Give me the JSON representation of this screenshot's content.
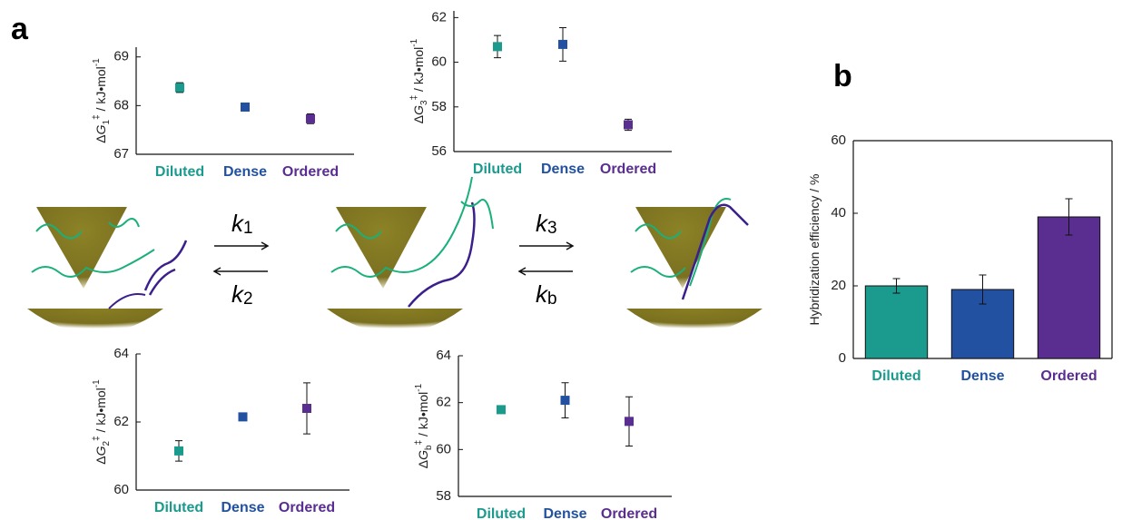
{
  "panel_labels": [
    "a",
    "b"
  ],
  "rate_constants": [
    {
      "symbol": "k",
      "subscript": "1"
    },
    {
      "symbol": "k",
      "subscript": "2"
    },
    {
      "symbol": "k",
      "subscript": "3"
    },
    {
      "symbol": "k",
      "subscript": "b"
    }
  ],
  "chart_data": [
    {
      "type": "errorbar",
      "categories": [
        "Diluted",
        "Dense",
        "Ordered"
      ],
      "colors": [
        "#1b9a8e",
        "#2151a0",
        "#5a2d90"
      ],
      "values": [
        68.37,
        67.97,
        67.73
      ],
      "errors": [
        0.1,
        0.03,
        0.1
      ],
      "ylabel": [
        {
          "text": "Δ"
        },
        {
          "text": "G",
          "style": "italic"
        },
        {
          "text": "1",
          "style": "sub"
        },
        {
          "text": "‡",
          "style": "sup"
        },
        {
          "text": " / kJ•mol"
        },
        {
          "text": "-1",
          "style": "sup"
        }
      ],
      "ylim": [
        67,
        69.2
      ],
      "yticks": [
        67,
        68,
        69
      ],
      "frame": false
    },
    {
      "type": "errorbar",
      "categories": [
        "Diluted",
        "Dense",
        "Ordered"
      ],
      "colors": [
        "#1b9a8e",
        "#2151a0",
        "#5a2d90"
      ],
      "values": [
        60.7,
        60.8,
        57.2
      ],
      "errors": [
        0.5,
        0.75,
        0.25
      ],
      "ylabel": [
        {
          "text": "Δ"
        },
        {
          "text": "G",
          "style": "italic"
        },
        {
          "text": "3",
          "style": "sub"
        },
        {
          "text": "‡",
          "style": "sup"
        },
        {
          "text": " / kJ•mol"
        },
        {
          "text": "-1",
          "style": "sup"
        }
      ],
      "ylim": [
        56,
        62.3
      ],
      "yticks": [
        56,
        58,
        60,
        62
      ],
      "frame": false
    },
    {
      "type": "errorbar",
      "categories": [
        "Diluted",
        "Dense",
        "Ordered"
      ],
      "colors": [
        "#1b9a8e",
        "#2151a0",
        "#5a2d90"
      ],
      "values": [
        61.15,
        62.15,
        62.4
      ],
      "errors": [
        0.3,
        0.05,
        0.75
      ],
      "ylabel": [
        {
          "text": "Δ"
        },
        {
          "text": "G",
          "style": "italic"
        },
        {
          "text": "2",
          "style": "sub"
        },
        {
          "text": "‡",
          "style": "sup"
        },
        {
          "text": " / kJ•mol"
        },
        {
          "text": "-1",
          "style": "sup"
        }
      ],
      "ylim": [
        60,
        64
      ],
      "yticks": [
        60,
        62,
        64
      ],
      "frame": false
    },
    {
      "type": "errorbar",
      "categories": [
        "Diluted",
        "Dense",
        "Ordered"
      ],
      "colors": [
        "#1b9a8e",
        "#2151a0",
        "#5a2d90"
      ],
      "values": [
        61.7,
        62.1,
        61.2
      ],
      "errors": [
        0.1,
        0.75,
        1.05
      ],
      "ylabel": [
        {
          "text": "Δ"
        },
        {
          "text": "G",
          "style": "italic"
        },
        {
          "text": "b",
          "style": "sub"
        },
        {
          "text": "‡",
          "style": "sup"
        },
        {
          "text": " / kJ•mol"
        },
        {
          "text": "-1",
          "style": "sup"
        }
      ],
      "ylim": [
        58,
        64
      ],
      "yticks": [
        58,
        60,
        62,
        64
      ],
      "frame": false
    },
    {
      "type": "bar",
      "categories": [
        "Diluted",
        "Dense",
        "Ordered"
      ],
      "colors": [
        "#1b9a8e",
        "#2151a0",
        "#5a2d90"
      ],
      "values": [
        20,
        19,
        39
      ],
      "errors": [
        2,
        4,
        5
      ],
      "ylabel": [
        {
          "text": "Hybridization efficiency / %"
        }
      ],
      "ylim": [
        0,
        60
      ],
      "yticks": [
        0,
        20,
        40,
        60
      ],
      "frame": true
    }
  ]
}
